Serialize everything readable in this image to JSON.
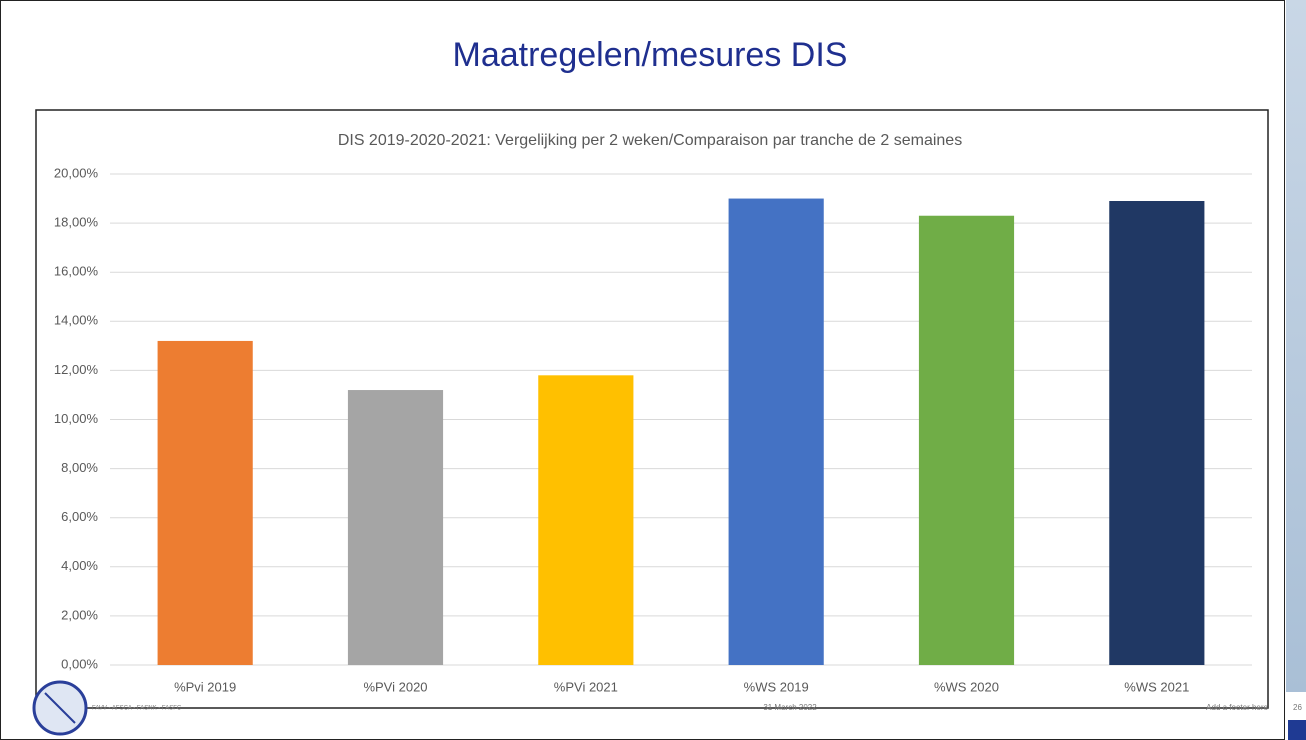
{
  "slide_title": "Maatregelen/mesures DIS",
  "footer": {
    "left": "FAVV - AFSCA - FASNK - FASFC",
    "date": "31 March 2022",
    "right": "Add a footer here",
    "page": "26"
  },
  "chart_data": {
    "type": "bar",
    "title": "DIS 2019-2020-2021: Vergelijking per 2 weken/Comparaison par tranche de 2 semaines",
    "categories": [
      "%Pvi 2019",
      "%PVi 2020",
      "%PVi 2021",
      "%WS 2019",
      "%WS 2020",
      "%WS 2021"
    ],
    "values": [
      13.2,
      11.2,
      11.8,
      19.0,
      18.3,
      18.9
    ],
    "colors": [
      "#ed7d31",
      "#a5a5a5",
      "#ffc000",
      "#4472c4",
      "#70ad47",
      "#203864"
    ],
    "ylim": [
      0,
      20
    ],
    "yticks": [
      {
        "value": 0,
        "label": "0,00%"
      },
      {
        "value": 2,
        "label": "2,00%"
      },
      {
        "value": 4,
        "label": "4,00%"
      },
      {
        "value": 6,
        "label": "6,00%"
      },
      {
        "value": 8,
        "label": "8,00%"
      },
      {
        "value": 10,
        "label": "10,00%"
      },
      {
        "value": 12,
        "label": "12,00%"
      },
      {
        "value": 14,
        "label": "14,00%"
      },
      {
        "value": 16,
        "label": "16,00%"
      },
      {
        "value": 18,
        "label": "18,00%"
      },
      {
        "value": 20,
        "label": "20,00%"
      }
    ],
    "grid": true
  }
}
